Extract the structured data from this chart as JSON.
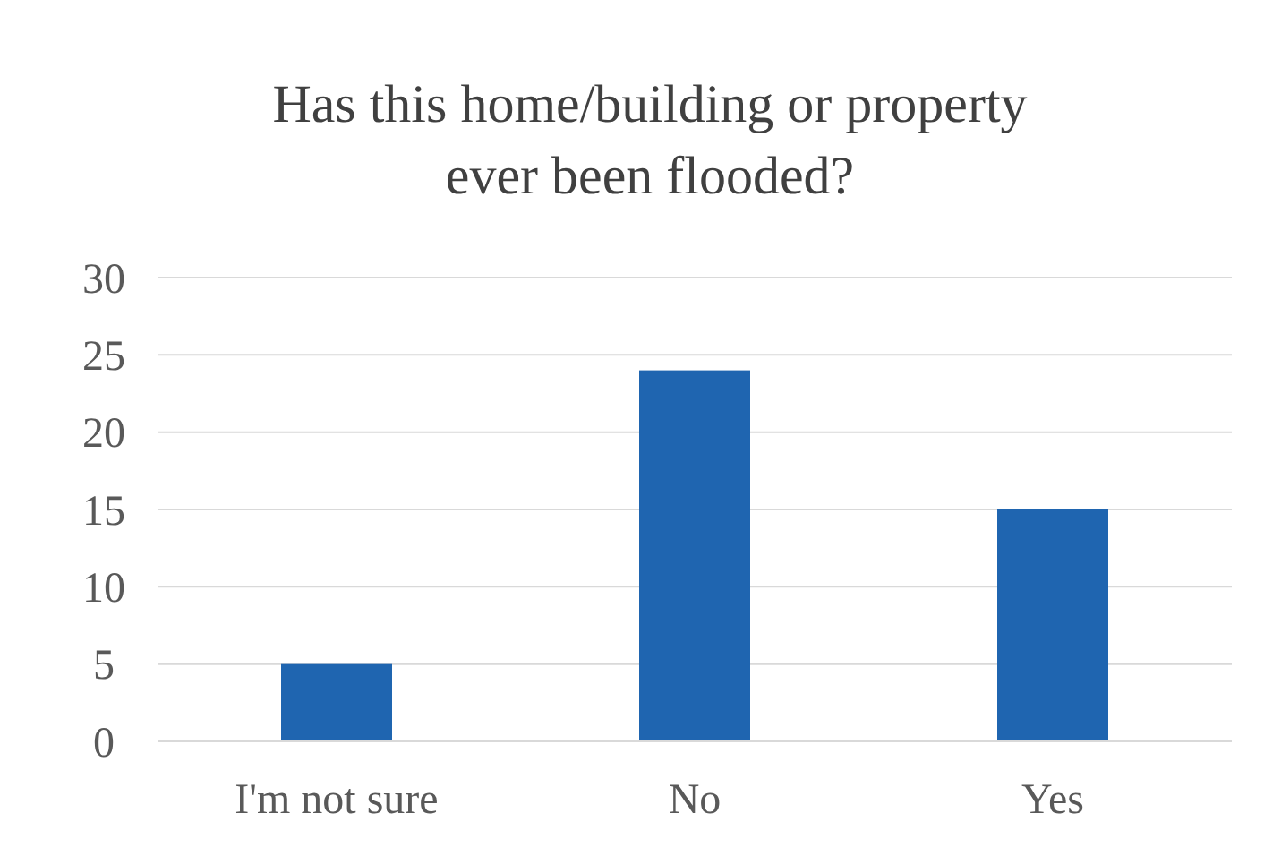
{
  "chart_data": {
    "type": "bar",
    "title": "Has this home/building or property ever been flooded?",
    "categories": [
      "I'm not sure",
      "No",
      "Yes"
    ],
    "values": [
      5,
      24,
      15
    ],
    "color": "#1f65b0",
    "ylim": [
      0,
      30
    ],
    "yticks": [
      0,
      5,
      10,
      15,
      20,
      25,
      30
    ],
    "grid": "y"
  }
}
